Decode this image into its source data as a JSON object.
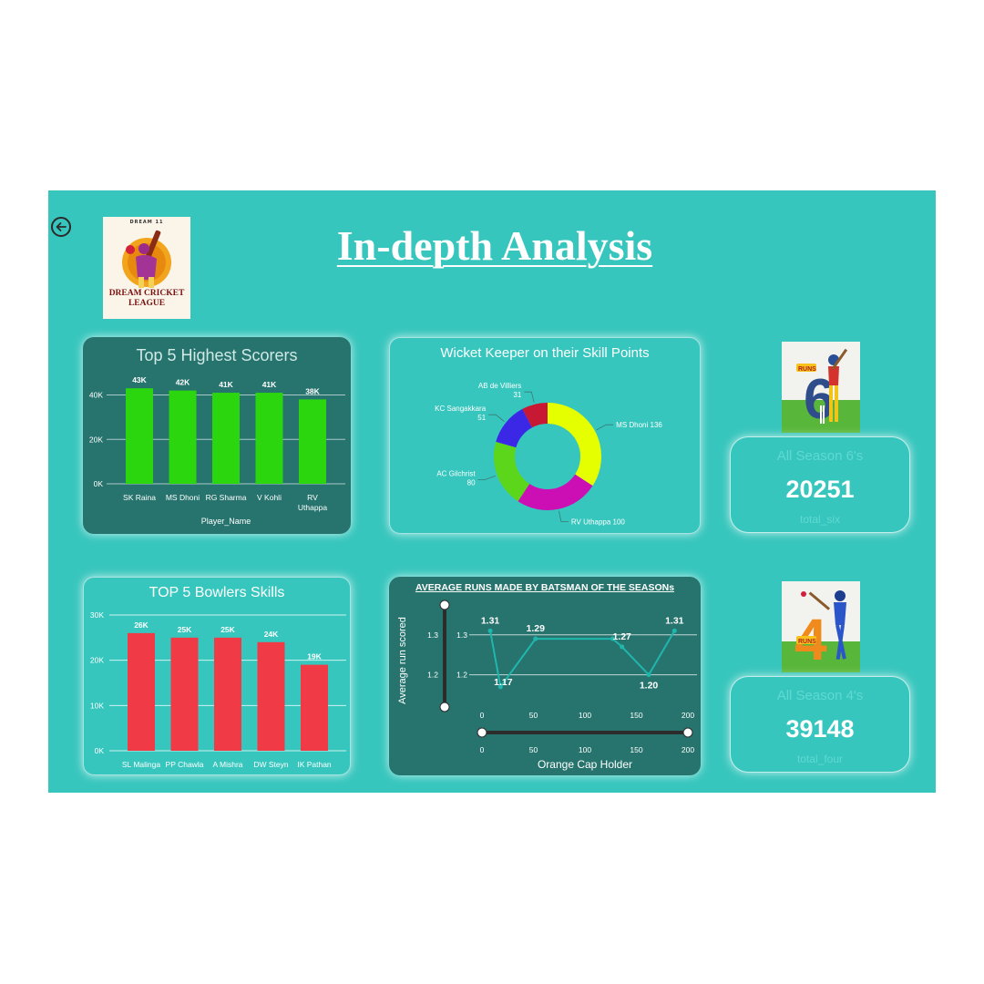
{
  "page_title": "In-depth Analysis",
  "logo": {
    "top_text": "DREAM 11",
    "name_line1": "DREAM CRICKET",
    "name_line2": "LEAGUE"
  },
  "colors": {
    "background": "#37c6bd",
    "dark_panel": "#27746e",
    "scorer_bar": "#2bd60f",
    "bowler_bar": "#f03a46",
    "line": "#1fb7ad"
  },
  "sixes_card": {
    "label": "All Season 6's",
    "value": "20251",
    "sub": "total_six",
    "badge": "RUNS",
    "digit": "6"
  },
  "fours_card": {
    "label": "All Season 4's",
    "value": "39148",
    "sub": "total_four",
    "badge": "RUNS",
    "digit": "4"
  },
  "chart_data": [
    {
      "type": "bar",
      "title": "Top 5 Highest Scorers",
      "xlabel": "Player_Name",
      "ylabel": "",
      "categories": [
        "SK Raina",
        "MS Dhoni",
        "RG Sharma",
        "V Kohli",
        "RV Uthappa"
      ],
      "values": [
        43000,
        42000,
        41000,
        41000,
        38000
      ],
      "data_labels": [
        "43K",
        "42K",
        "41K",
        "41K",
        "38K"
      ],
      "y_ticks": [
        0,
        20000,
        40000
      ],
      "y_tick_labels": [
        "0K",
        "20K",
        "40K"
      ],
      "ylim": [
        0,
        48000
      ],
      "grid": true
    },
    {
      "type": "pie",
      "title": "Wicket Keeper on their Skill Points",
      "donut": true,
      "slices": [
        {
          "label": "MS Dhoni",
          "value": 136,
          "color": "#e5ff00"
        },
        {
          "label": "RV Uthappa",
          "value": 100,
          "color": "#cc0fb4"
        },
        {
          "label": "AC Gilchrist",
          "value": 80,
          "color": "#5cd61a"
        },
        {
          "label": "KC Sangakkara",
          "value": 51,
          "color": "#3b28e6"
        },
        {
          "label": "AB de Villiers",
          "value": 31,
          "color": "#c81934"
        }
      ]
    },
    {
      "type": "bar",
      "title": "TOP 5 Bowlers Skills",
      "xlabel": "",
      "ylabel": "",
      "categories": [
        "SL Malinga",
        "PP Chawla",
        "A Mishra",
        "DW Steyn",
        "IK Pathan"
      ],
      "values": [
        26000,
        25000,
        25000,
        24000,
        19000
      ],
      "data_labels": [
        "26K",
        "25K",
        "25K",
        "24K",
        "19K"
      ],
      "y_ticks": [
        0,
        10000,
        20000,
        30000
      ],
      "y_tick_labels": [
        "0K",
        "10K",
        "20K",
        "30K"
      ],
      "ylim": [
        0,
        30000
      ],
      "grid": true
    },
    {
      "type": "line",
      "title": "AVERAGE RUNS MADE BY BATSMAN OF THE SEASONs",
      "xlabel": "Orange Cap Holder",
      "ylabel": "Average run scored",
      "x": [
        8,
        18,
        52,
        127,
        136,
        162,
        187
      ],
      "y": [
        1.31,
        1.17,
        1.29,
        1.29,
        1.27,
        1.2,
        1.31
      ],
      "point_labels": [
        "1.31",
        "1.17",
        "1.29",
        "",
        "1.27",
        "1.20",
        "1.31"
      ],
      "x_ticks": [
        0,
        50,
        100,
        150,
        200
      ],
      "y_ticks": [
        1.2,
        1.3
      ],
      "y_tick_labels": [
        "1.2",
        "1.3"
      ],
      "xlim": [
        0,
        200
      ],
      "ylim": [
        1.14,
        1.345
      ],
      "grid": true
    }
  ]
}
